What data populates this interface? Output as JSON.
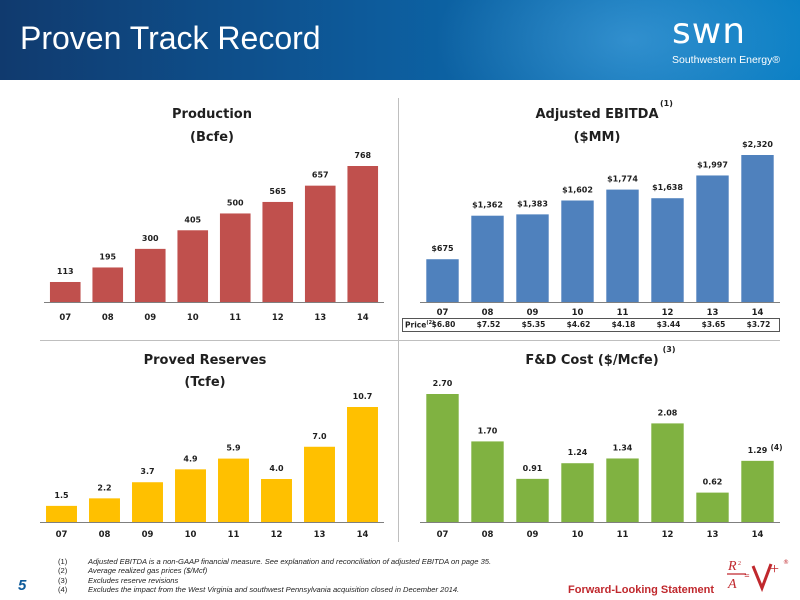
{
  "header": {
    "title": "Proven Track Record",
    "logo_text": "swn",
    "logo_subtext": "Southwestern Energy®"
  },
  "colors": {
    "production": "#c0504d",
    "ebitda": "#4f81bd",
    "reserves": "#ffc000",
    "fd_cost": "#80b241",
    "header": "#0d5a9a",
    "forward_looking": "#c0282d"
  },
  "chart_data": [
    {
      "id": "production",
      "type": "bar",
      "title": "Production",
      "subtitle": "(Bcfe)",
      "categories": [
        "07",
        "08",
        "09",
        "10",
        "11",
        "12",
        "13",
        "14"
      ],
      "values": [
        113,
        195,
        300,
        405,
        500,
        565,
        657,
        768
      ],
      "labels": [
        "113",
        "195",
        "300",
        "405",
        "500",
        "565",
        "657",
        "768"
      ],
      "ylim": [
        0,
        768
      ],
      "grid": false
    },
    {
      "id": "ebitda",
      "type": "bar",
      "title": "Adjusted EBITDA",
      "title_note": "(1)",
      "subtitle": "($MM)",
      "categories": [
        "07",
        "08",
        "09",
        "10",
        "11",
        "12",
        "13",
        "14"
      ],
      "values": [
        675,
        1362,
        1383,
        1602,
        1774,
        1638,
        1997,
        2320
      ],
      "labels": [
        "$675",
        "$1,362",
        "$1,383",
        "$1,602",
        "$1,774",
        "$1,638",
        "$1,997",
        "$2,320"
      ],
      "ylim": [
        0,
        2320
      ],
      "grid": false,
      "table_row": {
        "label": "Price",
        "label_note": "(2)",
        "values": [
          "$6.80",
          "$7.52",
          "$5.35",
          "$4.62",
          "$4.18",
          "$3.44",
          "$3.65",
          "$3.72"
        ]
      }
    },
    {
      "id": "reserves",
      "type": "bar",
      "title": "Proved Reserves",
      "subtitle": "(Tcfe)",
      "categories": [
        "07",
        "08",
        "09",
        "10",
        "11",
        "12",
        "13",
        "14"
      ],
      "values": [
        1.5,
        2.2,
        3.7,
        4.9,
        5.9,
        4.0,
        7.0,
        10.7
      ],
      "labels": [
        "1.5",
        "2.2",
        "3.7",
        "4.9",
        "5.9",
        "4.0",
        "7.0",
        "10.7"
      ],
      "ylim": [
        0,
        10.7
      ],
      "grid": false
    },
    {
      "id": "fd_cost",
      "type": "bar",
      "title": "F&D Cost ($/Mcfe)",
      "title_note": "(3)",
      "subtitle": "",
      "categories": [
        "07",
        "08",
        "09",
        "10",
        "11",
        "12",
        "13",
        "14"
      ],
      "values": [
        2.7,
        1.7,
        0.91,
        1.24,
        1.34,
        2.08,
        0.62,
        1.29
      ],
      "labels": [
        "2.70",
        "1.70",
        "0.91",
        "1.24",
        "1.34",
        "2.08",
        "0.62",
        "1.29"
      ],
      "label_notes": [
        "",
        "",
        "",
        "",
        "",
        "",
        "",
        "(4)"
      ],
      "ylim": [
        0,
        2.7
      ],
      "grid": false
    }
  ],
  "footnotes": [
    {
      "num": "(1)",
      "text": "Adjusted EBITDA is a non-GAAP financial measure. See explanation and reconciliation of adjusted EBITDA on page 35."
    },
    {
      "num": "(2)",
      "text": "Average realized gas prices ($/Mcf)"
    },
    {
      "num": "(3)",
      "text": "Excludes reserve revisions"
    },
    {
      "num": "(4)",
      "text": "Excludes the impact from the West Virginia and southwest Pennsylvania acquisition closed in December 2014."
    }
  ],
  "page_number": "5",
  "forward_looking": "Forward-Looking Statement",
  "rv_logo": {
    "r": "R",
    "a": "A",
    "v": "V",
    "plus": "+",
    "square": "2",
    "registered": "®"
  }
}
